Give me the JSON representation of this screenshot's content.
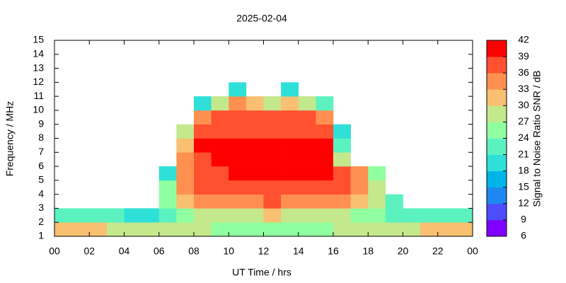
{
  "chart_data": {
    "type": "heatmap",
    "title": "2025-02-04",
    "xlabel": "UT Time / hrs",
    "ylabel": "Frequency / MHz",
    "colorbar_label": "Signal to Noise Ratio SNR / dB",
    "x_edges": [
      0,
      1,
      2,
      3,
      4,
      5,
      6,
      7,
      8,
      9,
      10,
      11,
      12,
      13,
      14,
      15,
      16,
      17,
      18,
      19,
      20,
      21,
      22,
      23,
      24
    ],
    "y_edges": [
      1,
      2,
      3,
      4,
      5,
      6,
      7,
      8,
      9,
      10,
      11,
      12,
      13,
      14,
      15
    ],
    "values": [
      [
        30,
        30,
        30,
        28,
        27,
        27,
        27,
        27,
        27,
        25,
        25,
        24,
        24,
        24,
        25,
        25,
        27,
        27,
        27,
        28,
        28,
        30,
        30,
        30
      ],
      [
        22,
        22,
        21,
        21,
        20,
        20,
        23,
        25,
        27,
        28,
        28,
        28,
        30,
        28,
        28,
        27,
        27,
        26,
        25,
        22,
        21,
        21,
        21,
        21
      ],
      [
        null,
        null,
        null,
        null,
        null,
        null,
        26,
        30,
        33,
        34,
        35,
        35,
        36,
        35,
        35,
        34,
        33,
        30,
        27,
        22,
        null,
        null,
        null,
        null
      ],
      [
        null,
        null,
        null,
        null,
        null,
        null,
        24,
        33,
        36,
        36,
        37,
        37,
        37,
        37,
        37,
        37,
        36,
        33,
        28,
        null,
        null,
        null,
        null,
        null
      ],
      [
        null,
        null,
        null,
        null,
        null,
        null,
        18,
        34,
        38,
        38,
        39,
        39,
        39,
        39,
        39,
        39,
        38,
        34,
        24,
        null,
        null,
        null,
        null,
        null
      ],
      [
        null,
        null,
        null,
        null,
        null,
        null,
        null,
        33,
        38,
        39,
        39,
        39,
        39,
        39,
        39,
        39,
        28,
        null,
        null,
        null,
        null,
        null,
        null,
        null
      ],
      [
        null,
        null,
        null,
        null,
        null,
        null,
        null,
        32,
        39,
        39,
        39,
        39,
        39,
        39,
        39,
        39,
        22,
        null,
        null,
        null,
        null,
        null,
        null,
        null
      ],
      [
        null,
        null,
        null,
        null,
        null,
        null,
        null,
        28,
        38,
        38,
        38,
        38,
        38,
        38,
        38,
        38,
        20,
        null,
        null,
        null,
        null,
        null,
        null,
        null
      ],
      [
        null,
        null,
        null,
        null,
        null,
        null,
        null,
        null,
        35,
        37,
        38,
        38,
        37,
        38,
        37,
        34,
        null,
        null,
        null,
        null,
        null,
        null,
        null,
        null
      ],
      [
        null,
        null,
        null,
        null,
        null,
        null,
        null,
        null,
        20,
        27,
        33,
        30,
        27,
        30,
        28,
        22,
        null,
        null,
        null,
        null,
        null,
        null,
        null,
        null
      ],
      [
        null,
        null,
        null,
        null,
        null,
        null,
        null,
        null,
        null,
        null,
        20,
        null,
        null,
        18,
        null,
        null,
        null,
        null,
        null,
        null,
        null,
        null,
        null,
        null
      ],
      [
        null,
        null,
        null,
        null,
        null,
        null,
        null,
        null,
        null,
        null,
        null,
        null,
        null,
        null,
        null,
        null,
        null,
        null,
        null,
        null,
        null,
        null,
        null,
        null
      ],
      [
        null,
        null,
        null,
        null,
        null,
        null,
        null,
        null,
        null,
        null,
        null,
        null,
        null,
        null,
        null,
        null,
        null,
        null,
        null,
        null,
        null,
        null,
        null,
        null
      ],
      [
        null,
        null,
        null,
        null,
        null,
        null,
        null,
        null,
        null,
        null,
        null,
        null,
        null,
        null,
        null,
        null,
        null,
        null,
        null,
        null,
        null,
        null,
        null,
        null
      ]
    ],
    "xlim": [
      0,
      24
    ],
    "xticks": [
      {
        "value": 0,
        "label": "00"
      },
      {
        "value": 2,
        "label": "02"
      },
      {
        "value": 4,
        "label": "04"
      },
      {
        "value": 6,
        "label": "06"
      },
      {
        "value": 8,
        "label": "08"
      },
      10,
      12,
      14,
      16,
      18,
      20,
      22,
      {
        "value": 24,
        "label": "00"
      }
    ],
    "ylim": [
      1,
      15
    ],
    "yticks": [
      1,
      2,
      3,
      4,
      5,
      6,
      7,
      8,
      9,
      10,
      11,
      12,
      13,
      14,
      15
    ],
    "zlim": [
      6,
      42
    ],
    "zticks": [
      6,
      9,
      12,
      15,
      18,
      21,
      24,
      27,
      30,
      33,
      36,
      39,
      42
    ],
    "colors": [
      "#7f00ff",
      "#4d4dff",
      "#1e88f0",
      "#00b4e8",
      "#2ee0d8",
      "#5cf2c0",
      "#90ffa0",
      "#c4e88c",
      "#f8c070",
      "#ff9050",
      "#ff5030",
      "#ff0000"
    ]
  }
}
